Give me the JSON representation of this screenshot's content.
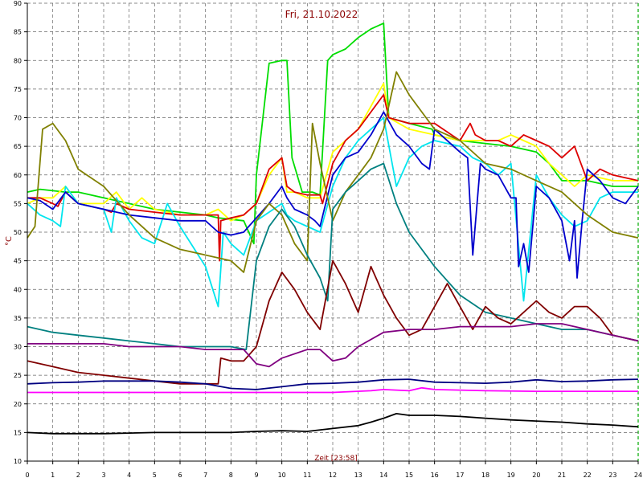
{
  "chart_data": {
    "type": "line",
    "title": "Fri, 21.10.2022",
    "xlabel": "Zeit [23:58]",
    "ylabel": "°C",
    "xlim": [
      0,
      24
    ],
    "ylim": [
      10,
      90
    ],
    "x_ticks": [
      0,
      1,
      2,
      3,
      4,
      5,
      6,
      7,
      8,
      9,
      10,
      11,
      12,
      13,
      14,
      15,
      16,
      17,
      18,
      19,
      20,
      21,
      22,
      23,
      24
    ],
    "y_ticks": [
      10,
      15,
      20,
      25,
      30,
      35,
      40,
      45,
      50,
      55,
      60,
      65,
      70,
      75,
      80,
      85,
      90
    ],
    "grid": true,
    "series": [
      {
        "color": "#00dd00",
        "x": [
          0,
          0.5,
          1.5,
          2,
          3,
          4,
          5,
          6,
          7,
          7.5,
          8.5,
          8.9,
          9,
          9.5,
          10,
          10.2,
          10.4,
          10.8,
          11.2,
          11.5,
          11.8,
          12,
          12.5,
          13,
          13.5,
          14,
          14.2,
          15,
          15.9,
          16,
          17,
          18,
          19,
          20,
          20.5,
          21,
          21.5,
          22,
          23,
          24
        ],
        "y": [
          57,
          57.5,
          57,
          57,
          56,
          55,
          54,
          53.5,
          53,
          52.5,
          52,
          48,
          60,
          79.5,
          80,
          80,
          63,
          57,
          57,
          56.5,
          80,
          81,
          82,
          84,
          85.5,
          86.5,
          70,
          69,
          68,
          67,
          66,
          65.5,
          65,
          64,
          62,
          59,
          59,
          59,
          58,
          58
        ]
      },
      {
        "color": "#ffff00",
        "x": [
          0,
          0.5,
          1,
          1.5,
          2,
          3,
          3.5,
          4,
          4.5,
          5,
          6,
          7,
          7.5,
          8,
          8.5,
          9,
          9.5,
          10,
          10.2,
          10.5,
          11,
          11.5,
          12,
          13,
          13.5,
          14,
          14.2,
          15,
          16,
          17,
          18,
          18.5,
          19,
          19.5,
          20,
          20.5,
          21,
          21.5,
          22,
          23,
          24
        ],
        "y": [
          55,
          56,
          56,
          58,
          55,
          55,
          57,
          54,
          56,
          54,
          53,
          53,
          54,
          52,
          53,
          55,
          60,
          63,
          57,
          57,
          56,
          56,
          64,
          68,
          72,
          76,
          70,
          68,
          67,
          66,
          66,
          66,
          67,
          66,
          65,
          62,
          60,
          58,
          60,
          59,
          59
        ]
      },
      {
        "color": "#dd0000",
        "x": [
          0,
          0.5,
          1,
          1.2,
          1.5,
          2,
          3,
          3.3,
          3.5,
          4,
          5,
          6,
          7,
          7.5,
          7.55,
          7.6,
          8,
          8.5,
          9,
          9.5,
          10,
          10.2,
          10.5,
          11,
          11.5,
          11.6,
          12,
          12.5,
          13,
          13.5,
          14,
          14.2,
          15,
          16,
          17,
          17.4,
          17.6,
          18,
          18.5,
          19,
          19.5,
          20,
          20.5,
          21,
          21.5,
          22,
          22.5,
          23,
          24
        ],
        "y": [
          56,
          56,
          55,
          54.5,
          57,
          55,
          54,
          53.5,
          55,
          54,
          53.5,
          53,
          53,
          53,
          45,
          52,
          52.5,
          53,
          55,
          61,
          63,
          58,
          57,
          56.5,
          56.5,
          55,
          62,
          66,
          68,
          71,
          74,
          70,
          69,
          69,
          66,
          69,
          67,
          66,
          66,
          65,
          67,
          66,
          65,
          63,
          65,
          59,
          61,
          60,
          59
        ]
      },
      {
        "color": "#00e5ee",
        "x": [
          0,
          0.5,
          1,
          1.3,
          1.5,
          2,
          3,
          3.3,
          3.5,
          4,
          4.5,
          5,
          5.5,
          6,
          7,
          7.5,
          7.7,
          8,
          8.5,
          9,
          10,
          10.2,
          10.5,
          11,
          11.5,
          12,
          12.5,
          13,
          13.5,
          14,
          14.5,
          15,
          15.5,
          16,
          17,
          17.5,
          18,
          18.5,
          19,
          19.5,
          20,
          20.5,
          21,
          21.5,
          22,
          22.5,
          23,
          24
        ],
        "y": [
          55,
          53,
          52,
          51,
          58,
          55,
          54,
          50,
          56,
          52,
          49,
          48,
          55,
          51,
          44,
          37,
          50,
          48,
          46,
          52,
          55,
          53,
          52,
          51,
          50,
          58,
          63,
          66,
          68,
          70,
          58,
          63,
          65,
          66,
          65,
          63,
          62,
          60,
          62,
          38,
          60,
          56,
          53,
          51,
          52,
          56,
          57,
          57
        ]
      },
      {
        "color": "#0000cc",
        "x": [
          0,
          0.5,
          1,
          1.5,
          2,
          3,
          4,
          5,
          6,
          7,
          7.5,
          8,
          8.5,
          9,
          9.5,
          10,
          10.2,
          10.5,
          11,
          11.3,
          11.5,
          12,
          12.5,
          13,
          13.5,
          14,
          14.5,
          15,
          15.5,
          15.8,
          16,
          17,
          17.3,
          17.5,
          17.8,
          18,
          18.5,
          19,
          19.2,
          19.3,
          19.5,
          19.7,
          20,
          20.5,
          21,
          21.3,
          21.5,
          21.6,
          21.8,
          22,
          22.5,
          23,
          23.5,
          24
        ],
        "y": [
          56,
          55.5,
          54,
          57,
          55,
          54,
          53,
          52.5,
          52,
          52,
          50,
          49.5,
          50,
          52.5,
          55,
          58,
          56,
          54,
          53,
          52,
          51,
          60,
          63,
          64,
          67,
          71,
          67,
          65,
          62,
          61,
          68,
          64,
          63,
          46,
          62,
          61,
          60,
          56,
          56,
          44,
          48,
          43,
          58,
          56,
          52,
          45,
          52,
          42,
          52,
          61,
          59,
          56,
          55,
          58
        ]
      },
      {
        "color": "#808000",
        "x": [
          0,
          0.3,
          0.6,
          1,
          1.5,
          2,
          3,
          4,
          5,
          6,
          7,
          8,
          8.5,
          9,
          9.5,
          10,
          10.5,
          11,
          11.2,
          11.5,
          12,
          12.5,
          13,
          13.5,
          14,
          14.5,
          15,
          15.5,
          16,
          17,
          18,
          19,
          20,
          21,
          22,
          23,
          24
        ],
        "y": [
          49,
          51,
          68,
          69,
          66,
          61,
          58,
          53,
          49,
          47,
          46,
          45,
          43,
          52,
          55,
          53,
          48,
          45,
          69,
          62,
          52,
          57,
          60,
          63,
          68,
          78,
          74,
          71,
          68,
          66,
          62,
          61,
          59,
          57,
          53,
          50,
          49
        ]
      },
      {
        "color": "#008080",
        "x": [
          0,
          1,
          2,
          3,
          4,
          5,
          6,
          7,
          8,
          8.6,
          9,
          9.5,
          10,
          10.5,
          11,
          11.5,
          11.8,
          12,
          12.5,
          13,
          13.5,
          14,
          14.5,
          15,
          15.5,
          16,
          17,
          18,
          19,
          20,
          21,
          22,
          23,
          24
        ],
        "y": [
          33.5,
          32.5,
          32,
          31.5,
          31,
          30.5,
          30,
          30,
          30,
          29.5,
          45,
          51,
          54,
          51,
          46,
          42,
          38,
          54,
          57,
          59,
          61,
          62,
          55,
          50,
          47,
          44,
          39,
          36,
          35,
          34,
          33,
          33,
          32,
          31
        ]
      },
      {
        "color": "#800000",
        "x": [
          0,
          1,
          2,
          3,
          4,
          5,
          6,
          7,
          7.5,
          7.6,
          8,
          8.5,
          9,
          9.5,
          10,
          10.5,
          11,
          11.5,
          12,
          12.5,
          13,
          13.5,
          14,
          14.5,
          15,
          15.5,
          16,
          16.5,
          17,
          17.5,
          18,
          18.5,
          19,
          19.5,
          20,
          20.5,
          21,
          21.5,
          22,
          22.5,
          23,
          24
        ],
        "y": [
          27.5,
          26.5,
          25.5,
          25,
          24.5,
          24,
          23.5,
          23.5,
          23.5,
          28,
          27.5,
          27.5,
          30,
          38,
          43,
          40,
          36,
          33,
          45,
          41,
          36,
          44,
          39,
          35,
          32,
          33,
          37,
          41,
          37,
          33,
          37,
          35,
          34,
          36,
          38,
          36,
          35,
          37,
          37,
          35,
          32,
          31
        ]
      },
      {
        "color": "#800080",
        "x": [
          0,
          1,
          2,
          3,
          4,
          5,
          6,
          7,
          8,
          8.5,
          9,
          9.5,
          10,
          11,
          11.5,
          12,
          12.5,
          13,
          14,
          15,
          16,
          17,
          18,
          19,
          20,
          21,
          22,
          23,
          24
        ],
        "y": [
          30.5,
          30.5,
          30.5,
          30.5,
          30,
          30,
          30,
          29.5,
          29.5,
          29.5,
          27,
          26.5,
          28,
          29.5,
          29.5,
          27.5,
          28,
          30,
          32.5,
          33,
          33,
          33.5,
          33.5,
          33.5,
          34,
          34,
          33,
          32,
          31
        ]
      },
      {
        "color": "#000080",
        "x": [
          0,
          1,
          2,
          3,
          4,
          5,
          6,
          7,
          8,
          9,
          10,
          11,
          12,
          13,
          14,
          15,
          16,
          17,
          18,
          19,
          20,
          21,
          22,
          23,
          24
        ],
        "y": [
          23.5,
          23.7,
          23.8,
          24,
          24,
          24,
          23.8,
          23.5,
          22.7,
          22.5,
          23,
          23.5,
          23.6,
          23.8,
          24.2,
          24.3,
          23.8,
          23.7,
          23.6,
          23.8,
          24.2,
          23.9,
          24,
          24.2,
          24.3
        ]
      },
      {
        "color": "#ff00ff",
        "x": [
          0,
          2,
          4,
          6,
          8,
          10,
          12,
          13.5,
          14,
          15,
          15.5,
          16,
          18,
          20,
          22,
          24
        ],
        "y": [
          22,
          22,
          22,
          22,
          22,
          22,
          22,
          22.3,
          22.5,
          22.3,
          22.8,
          22.5,
          22.3,
          22.2,
          22.2,
          22.2
        ]
      },
      {
        "color": "#000000",
        "x": [
          0,
          1,
          2,
          3,
          4,
          5,
          6,
          7,
          8,
          9,
          10,
          11,
          12,
          13,
          13.5,
          14,
          14.5,
          15,
          16,
          17,
          18,
          19,
          20,
          21,
          22,
          23,
          24
        ],
        "y": [
          15,
          14.8,
          14.8,
          14.8,
          14.9,
          15,
          15,
          15,
          15,
          15.2,
          15.3,
          15.2,
          15.7,
          16.2,
          16.8,
          17.5,
          18.3,
          18,
          18,
          17.8,
          17.5,
          17.2,
          17,
          16.8,
          16.5,
          16.3,
          16
        ]
      }
    ]
  }
}
